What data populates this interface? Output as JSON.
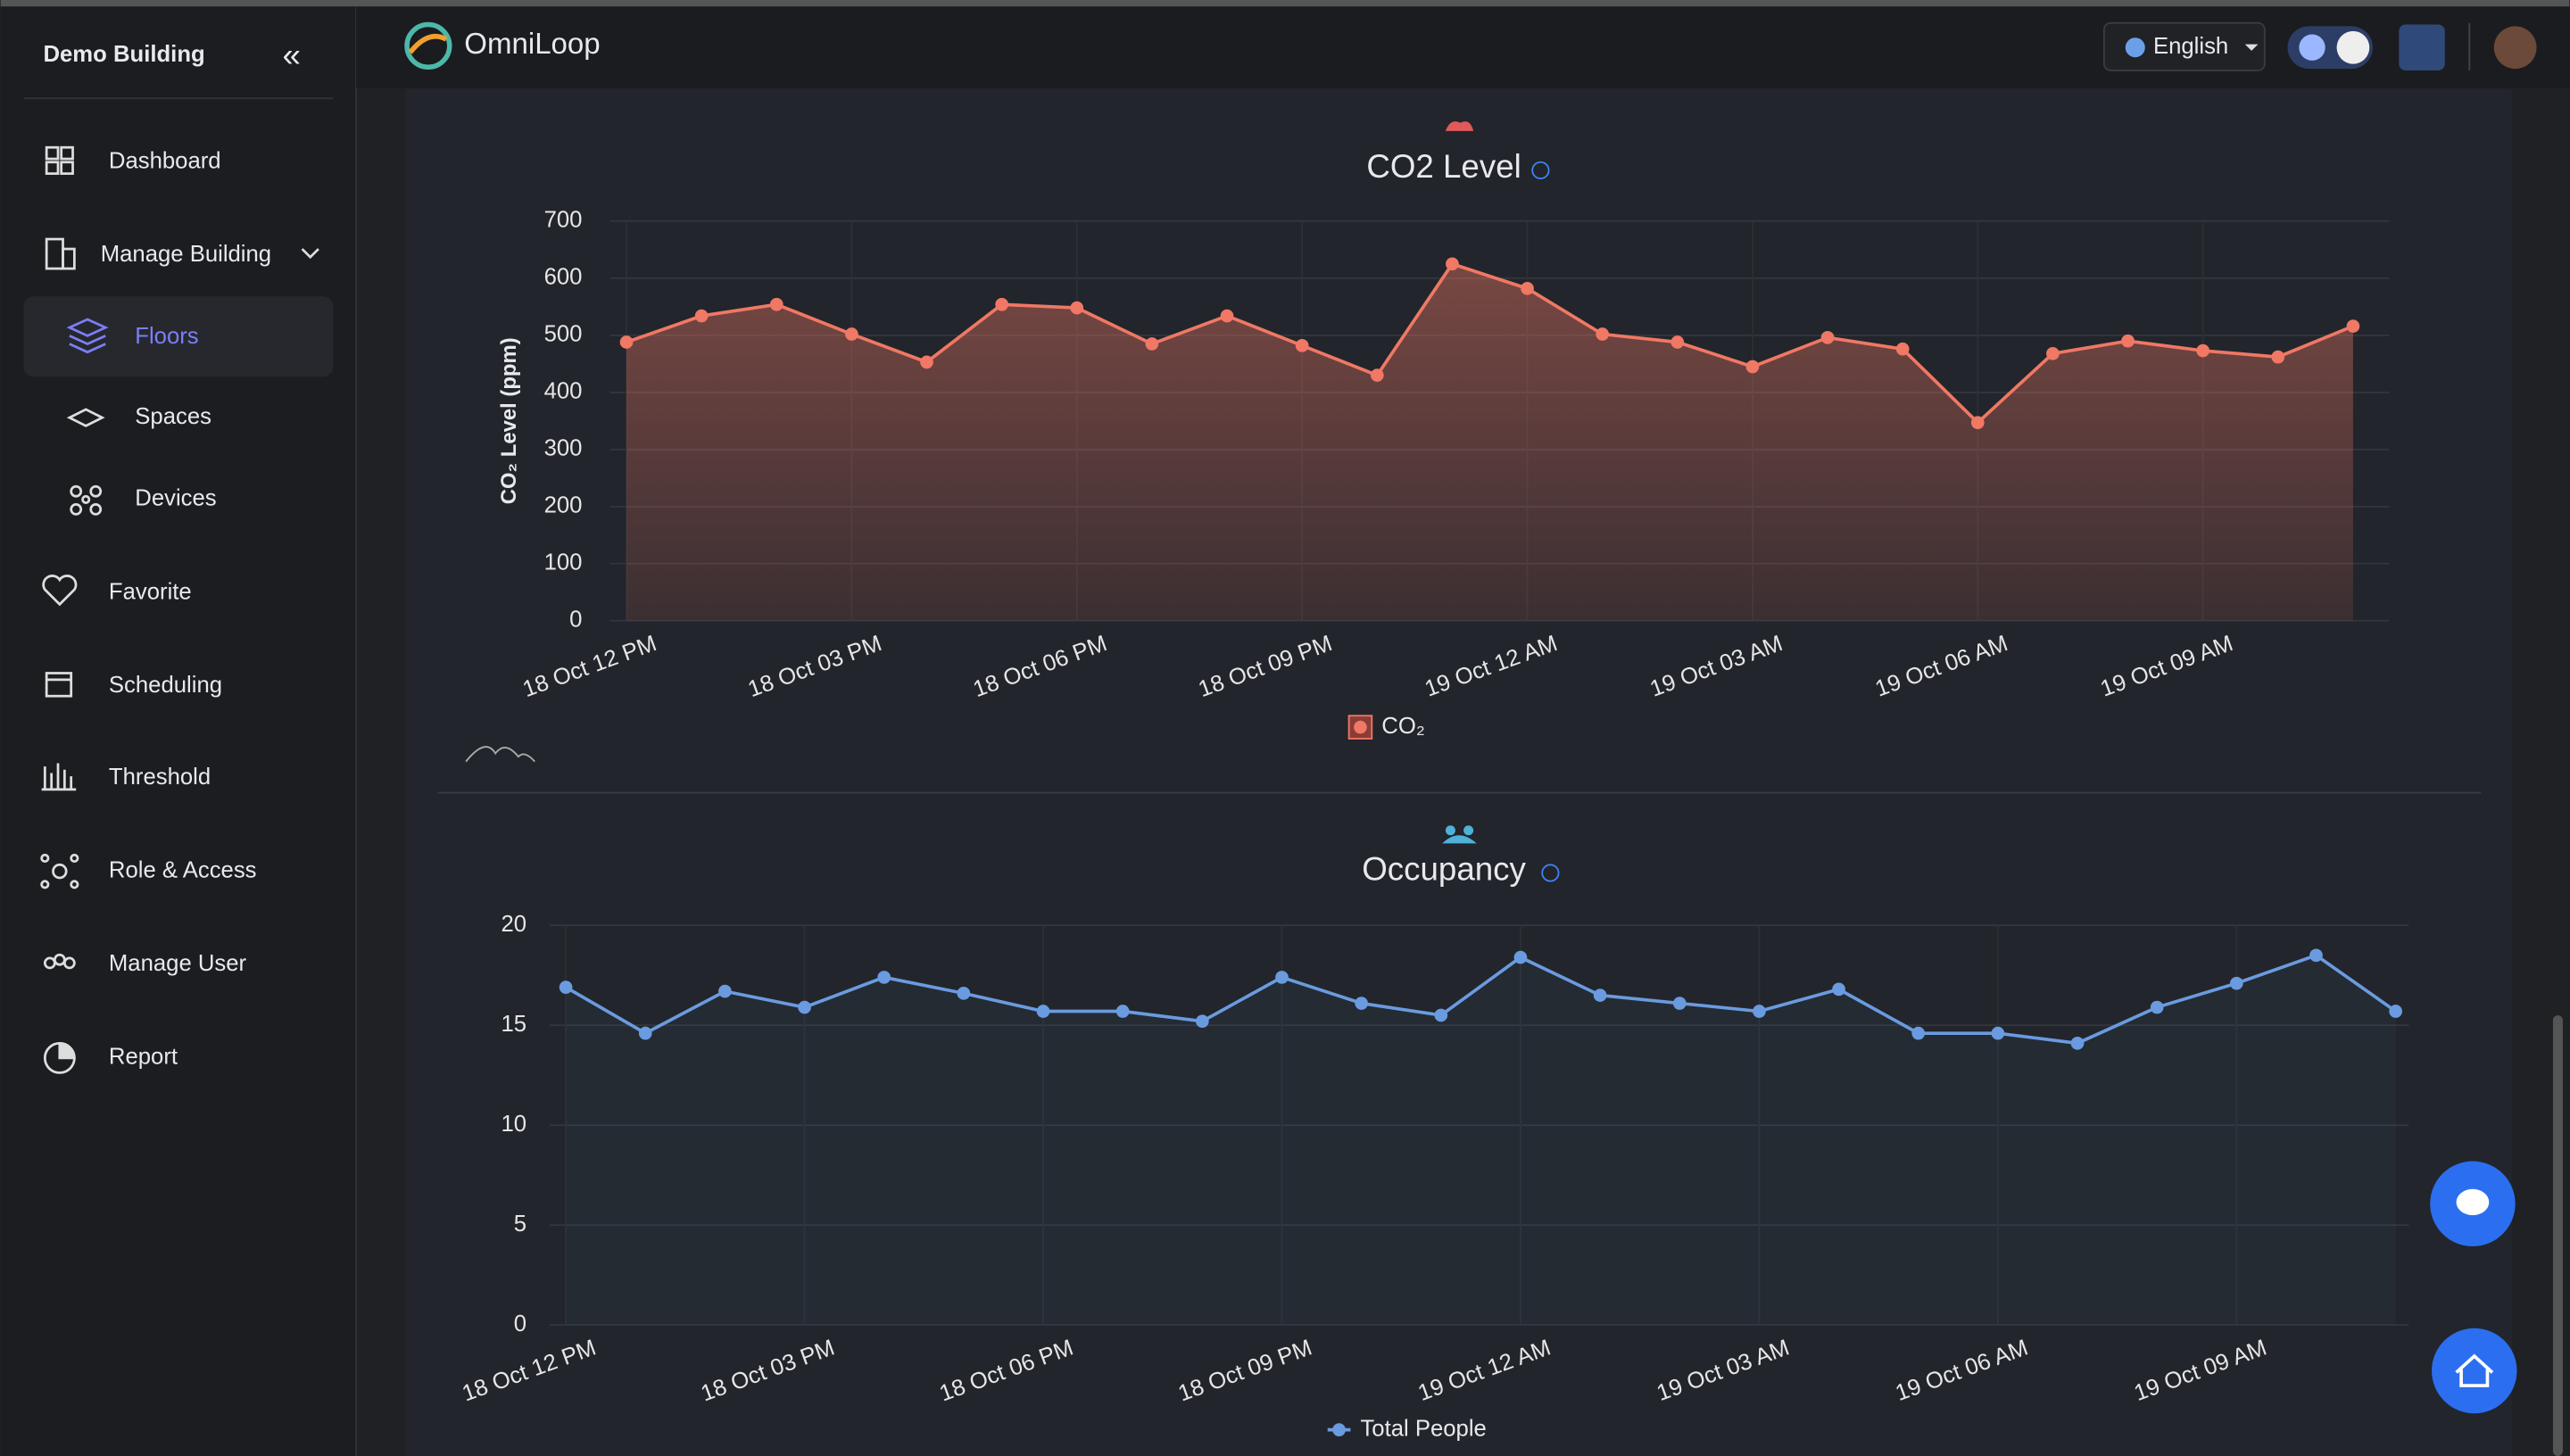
{
  "sidebar": {
    "building": "Demo Building",
    "items": [
      "Dashboard",
      "Manage Building",
      "Floors",
      "Spaces",
      "Devices",
      "Favorite",
      "Scheduling",
      "Threshold",
      "Role & Access",
      "Manage User",
      "Report"
    ]
  },
  "header": {
    "brand": "OmniLoop",
    "language": "English"
  },
  "chart_data": [
    {
      "type": "area",
      "title": "CO2 Level",
      "y_label": "CO₂ Level (ppm)",
      "categories": [
        "18 Oct 12 PM",
        null,
        null,
        "18 Oct 03 PM",
        null,
        null,
        "18 Oct 06 PM",
        null,
        null,
        "18 Oct 09 PM",
        null,
        null,
        "19 Oct 12 AM",
        null,
        null,
        "19 Oct 03 AM",
        null,
        null,
        "19 Oct 06 AM",
        null,
        null,
        "19 Oct 09 AM",
        null,
        null
      ],
      "series": [
        {
          "name": "CO₂",
          "color": "#f07864",
          "values": [
            488,
            534,
            554,
            502,
            453,
            554,
            548,
            485,
            534,
            482,
            430,
            625,
            582,
            502,
            488,
            445,
            496,
            476,
            347,
            468,
            490,
            473,
            462,
            516
          ]
        }
      ],
      "ylim": [
        0,
        700
      ],
      "yticks": [
        0,
        100,
        200,
        300,
        400,
        500,
        600,
        700
      ],
      "grid": true
    },
    {
      "type": "line",
      "title": "Occupancy",
      "categories": [
        "18 Oct 12 PM",
        null,
        null,
        "18 Oct 03 PM",
        null,
        null,
        "18 Oct 06 PM",
        null,
        null,
        "18 Oct 09 PM",
        null,
        null,
        "19 Oct 12 AM",
        null,
        null,
        "19 Oct 03 AM",
        null,
        null,
        "19 Oct 06 AM",
        null,
        null,
        "19 Oct 09 AM",
        null,
        null
      ],
      "series": [
        {
          "name": "Total People",
          "color": "#6a9be0",
          "values": [
            16.9,
            14.6,
            16.7,
            15.9,
            17.4,
            16.6,
            15.7,
            15.7,
            15.2,
            17.4,
            16.1,
            15.5,
            18.4,
            16.5,
            16.1,
            15.7,
            16.8,
            14.6,
            14.6,
            14.1,
            15.9,
            17.1,
            18.5,
            15.7
          ]
        }
      ],
      "ylim": [
        0,
        20
      ],
      "yticks": [
        0,
        5,
        10,
        15,
        20
      ],
      "grid": true
    }
  ]
}
